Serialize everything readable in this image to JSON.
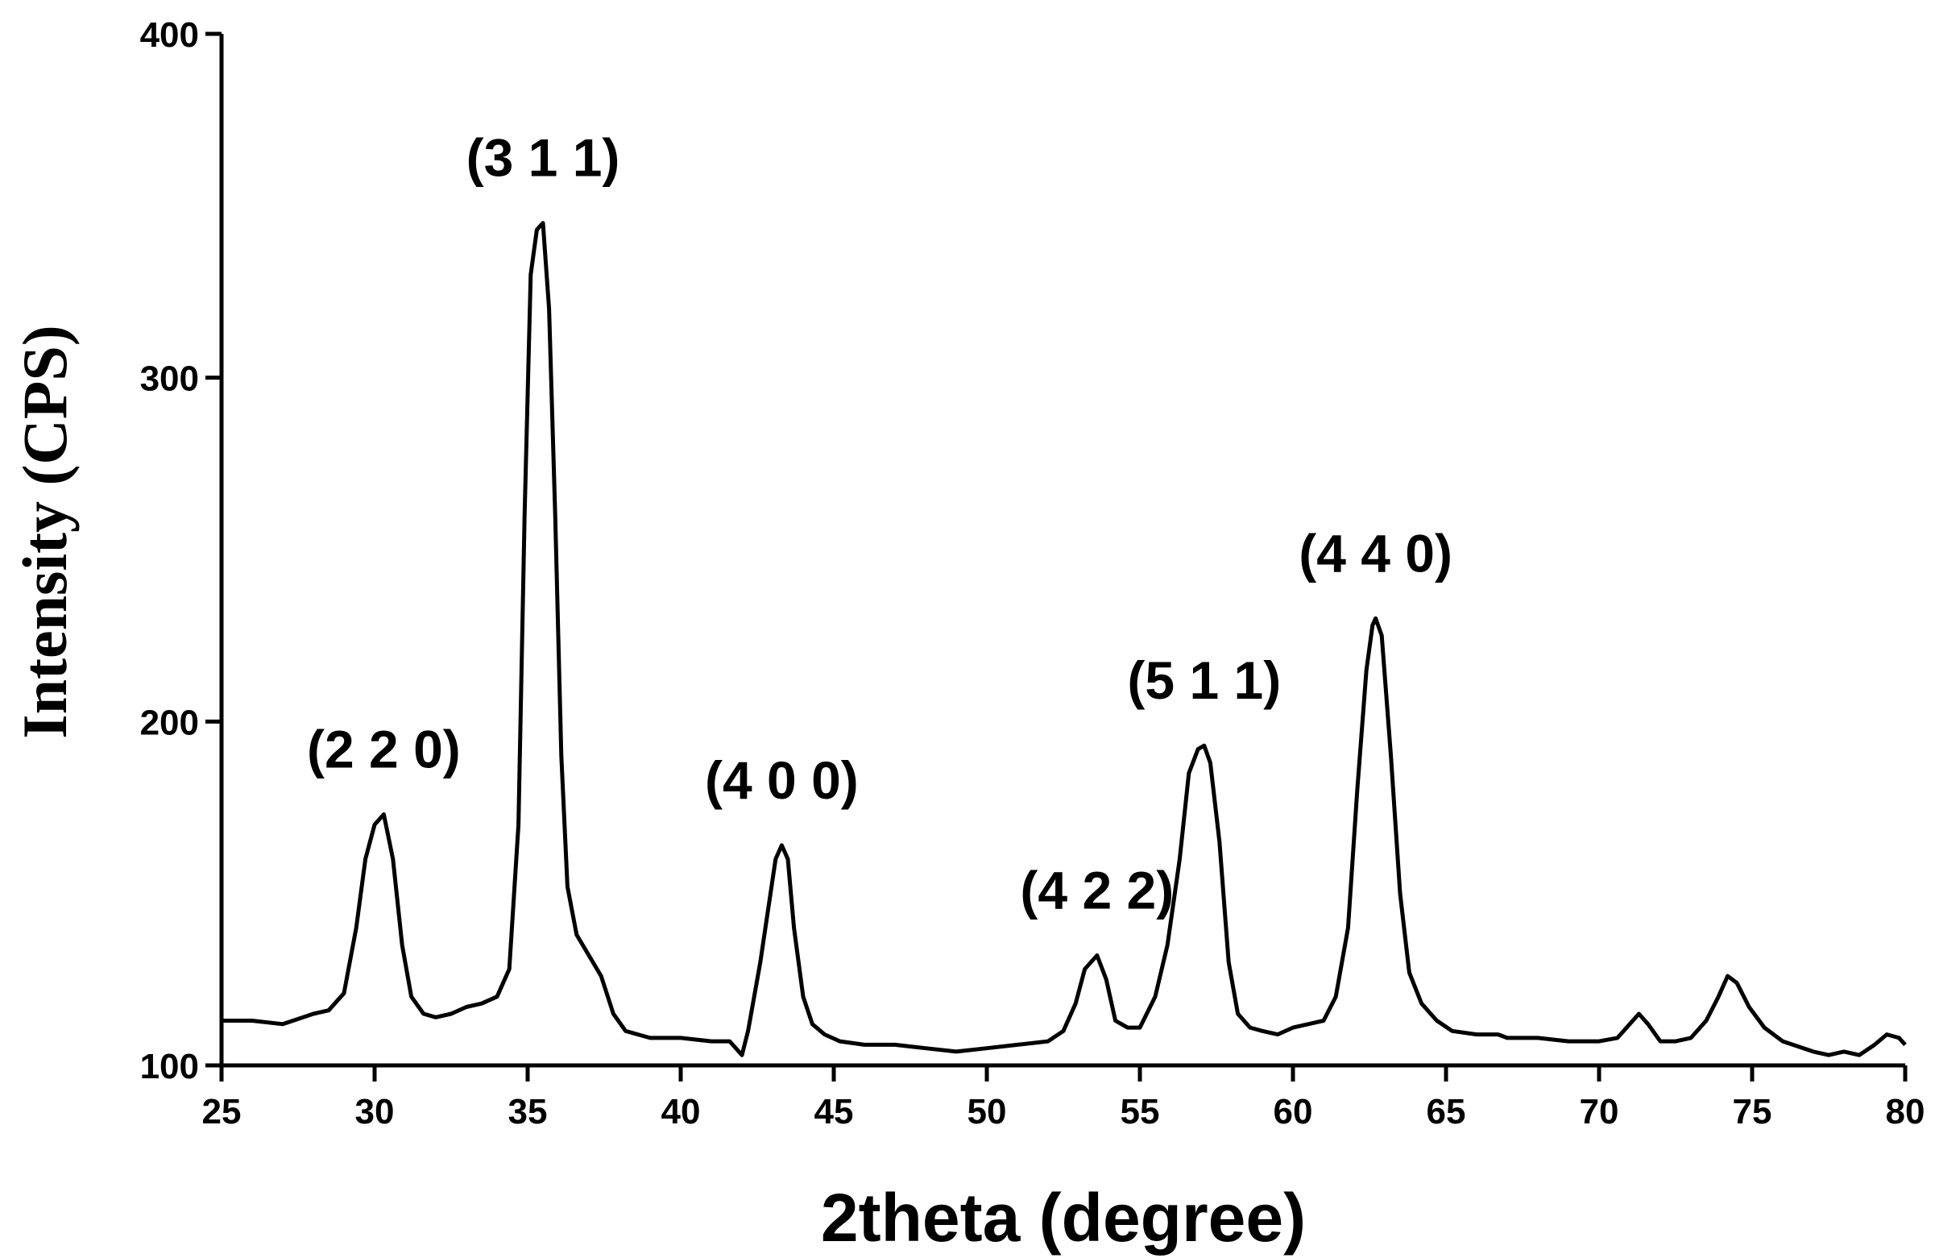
{
  "chart_data": {
    "type": "line",
    "title": "",
    "xlabel": "2theta (degree)",
    "ylabel": "Intensity (CPS)",
    "xlim": [
      25,
      80
    ],
    "ylim": [
      100,
      400
    ],
    "x_ticks": [
      25,
      30,
      35,
      40,
      45,
      50,
      55,
      60,
      65,
      70,
      75,
      80
    ],
    "y_ticks": [
      100,
      200,
      300,
      400
    ],
    "grid": false,
    "legend": "none",
    "line_color": "#000000",
    "peak_annotations": [
      {
        "text": "(2 2 0)",
        "x": 30.3,
        "y": 173
      },
      {
        "text": "(3 1 1)",
        "x": 35.5,
        "y": 345
      },
      {
        "text": "(4 0 0)",
        "x": 43.3,
        "y": 164
      },
      {
        "text": "(4 2 2)",
        "x": 53.6,
        "y": 132
      },
      {
        "text": "(5 1 1)",
        "x": 57.1,
        "y": 193
      },
      {
        "text": "(4 4 0)",
        "x": 62.7,
        "y": 230
      }
    ],
    "series": [
      {
        "x": [
          25,
          26,
          27,
          28,
          28.5,
          29,
          29.4,
          29.7,
          30.0,
          30.3,
          30.6,
          30.9,
          31.2,
          31.6,
          32,
          32.5,
          33,
          33.5,
          34,
          34.4,
          34.7,
          34.9,
          35.1,
          35.3,
          35.5,
          35.7,
          35.9,
          36.1,
          36.3,
          36.6,
          37,
          37.4,
          37.8,
          38.2,
          38.6,
          39,
          40,
          41,
          41.6,
          42.0,
          42.2,
          42.4,
          42.6,
          42.9,
          43.1,
          43.3,
          43.5,
          43.7,
          44.0,
          44.3,
          44.7,
          45.2,
          46,
          47,
          48,
          49,
          50,
          51,
          52,
          52.5,
          52.9,
          53.2,
          53.6,
          53.9,
          54.2,
          54.6,
          55,
          55.5,
          55.9,
          56.3,
          56.6,
          56.9,
          57.1,
          57.3,
          57.6,
          57.9,
          58.2,
          58.6,
          59,
          59.5,
          60,
          60.5,
          61,
          61.4,
          61.8,
          62.1,
          62.4,
          62.6,
          62.7,
          62.9,
          63.2,
          63.5,
          63.8,
          64.2,
          64.7,
          65.2,
          66,
          66.7,
          67,
          68,
          69,
          70,
          70.6,
          71.0,
          71.3,
          71.6,
          72,
          72.5,
          73,
          73.5,
          73.9,
          74.2,
          74.5,
          74.9,
          75.4,
          76,
          77,
          77.5,
          78,
          78.5,
          79,
          79.4,
          79.8,
          80
        ],
        "y": [
          113,
          113,
          112,
          115,
          116,
          121,
          140,
          160,
          170,
          173,
          160,
          135,
          120,
          115,
          114,
          115,
          117,
          118,
          120,
          128,
          170,
          260,
          330,
          343,
          345,
          320,
          260,
          190,
          152,
          138,
          132,
          126,
          115,
          110,
          109,
          108,
          108,
          107,
          107,
          103,
          110,
          120,
          130,
          148,
          160,
          164,
          160,
          140,
          120,
          112,
          109,
          107,
          106,
          106,
          105,
          104,
          105,
          106,
          107,
          110,
          118,
          128,
          132,
          125,
          113,
          111,
          111,
          120,
          135,
          160,
          185,
          192,
          193,
          188,
          165,
          130,
          115,
          111,
          110,
          109,
          111,
          112,
          113,
          120,
          140,
          180,
          215,
          228,
          230,
          225,
          190,
          150,
          127,
          118,
          113,
          110,
          109,
          109,
          108,
          108,
          107,
          107,
          108,
          112,
          115,
          112,
          107,
          107,
          108,
          113,
          120,
          126,
          124,
          117,
          111,
          107,
          104,
          103,
          104,
          103,
          106,
          109,
          108,
          106
        ]
      }
    ]
  }
}
